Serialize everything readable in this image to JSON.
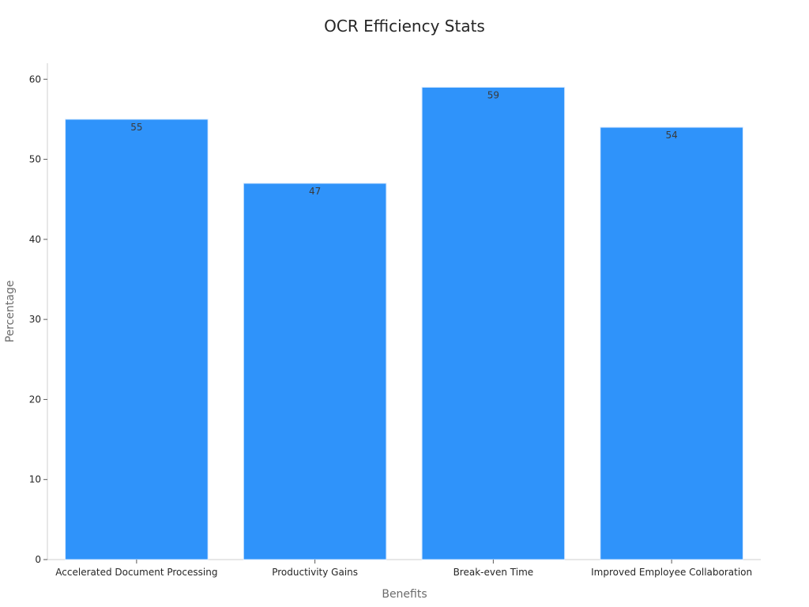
{
  "chart_data": {
    "type": "bar",
    "title": "OCR Efficiency Stats",
    "xlabel": "Benefits",
    "ylabel": "Percentage",
    "categories": [
      "Accelerated Document Processing",
      "Productivity Gains",
      "Break-even Time",
      "Improved Employee Collaboration"
    ],
    "values": [
      55,
      47,
      59,
      54
    ],
    "data_labels": [
      "55",
      "47",
      "59",
      "54"
    ],
    "ylim": [
      0,
      62
    ],
    "yticks": [
      0,
      10,
      20,
      30,
      40,
      50,
      60
    ],
    "ytick_labels": [
      "0",
      "10",
      "20",
      "30",
      "40",
      "50",
      "60"
    ],
    "grid": false,
    "bar_color": "#2f93fa",
    "bar_edge_color": "#d6e9ff"
  }
}
